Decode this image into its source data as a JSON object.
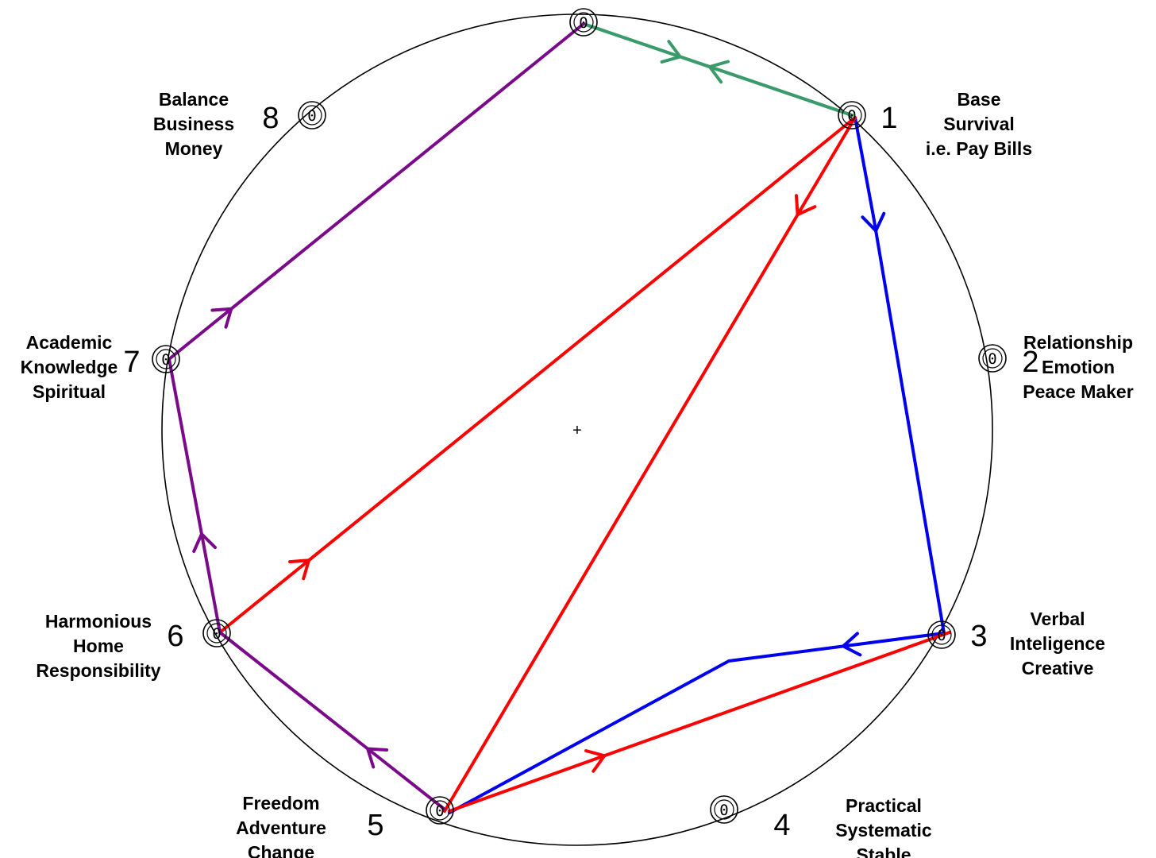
{
  "diagram": {
    "center_marker": "+",
    "nodes": [
      {
        "id": "0",
        "number": "",
        "value": "0",
        "labels": []
      },
      {
        "id": "1",
        "number": "1",
        "value": "0",
        "labels": [
          "Base",
          "Survival",
          "i.e. Pay Bills"
        ]
      },
      {
        "id": "2",
        "number": "2",
        "value": "0",
        "labels": [
          "Relationship",
          "Emotion",
          "Peace Maker"
        ]
      },
      {
        "id": "3",
        "number": "3",
        "value": "0",
        "labels": [
          "Verbal",
          "Inteligence",
          "Creative"
        ]
      },
      {
        "id": "4",
        "number": "4",
        "value": "0",
        "labels": [
          "Practical",
          "Systematic",
          "Stable"
        ]
      },
      {
        "id": "5",
        "number": "5",
        "value": "0",
        "labels": [
          "Freedom",
          "Adventure",
          "Change"
        ]
      },
      {
        "id": "6",
        "number": "6",
        "value": "0",
        "labels": [
          "Harmonious",
          "Home",
          "Responsibility"
        ]
      },
      {
        "id": "7",
        "number": "7",
        "value": "0",
        "labels": [
          "Academic",
          "Knowledge",
          "Spiritual"
        ]
      },
      {
        "id": "8",
        "number": "8",
        "value": "0",
        "labels": [
          "Balance",
          "Business",
          "Money"
        ]
      }
    ],
    "colors": {
      "green": "#3a9a6a",
      "blue": "#0000ee",
      "red": "#ff0000",
      "purple": "#7a0a8a",
      "circle": "#000000"
    },
    "paths": [
      {
        "color": "green",
        "from": "0",
        "to": "1"
      },
      {
        "color": "green",
        "from": "1",
        "to": "0"
      },
      {
        "color": "blue",
        "from": "1",
        "to": "3"
      },
      {
        "color": "blue",
        "from": "3",
        "to": "5"
      },
      {
        "color": "red",
        "from": "5",
        "to": "3"
      },
      {
        "color": "red",
        "from": "3",
        "to": "1"
      },
      {
        "color": "red",
        "from": "1",
        "to": "5"
      },
      {
        "color": "red",
        "from": "6",
        "to": "1"
      },
      {
        "color": "purple",
        "from": "5",
        "to": "6"
      },
      {
        "color": "purple",
        "from": "6",
        "to": "7"
      },
      {
        "color": "purple",
        "from": "7",
        "to": "0"
      }
    ]
  }
}
